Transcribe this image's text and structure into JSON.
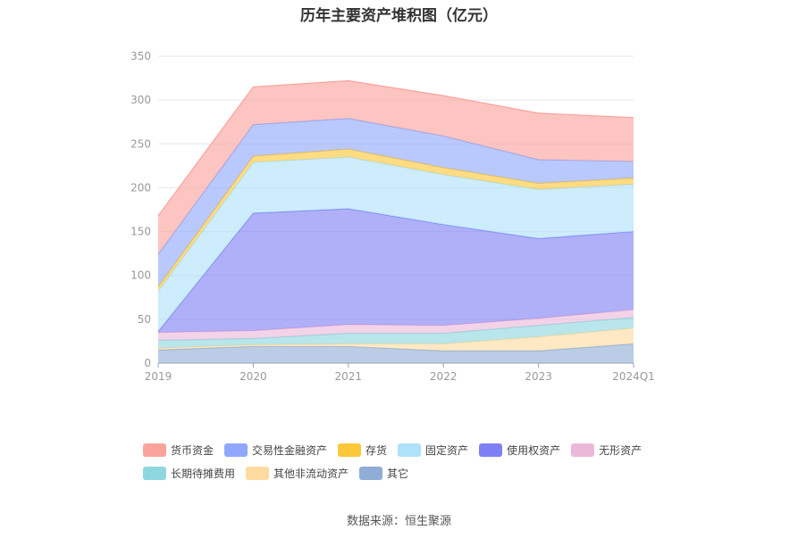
{
  "title": "历年主要资产堆积图（亿元）",
  "source": "数据来源：恒生聚源",
  "chart_data": {
    "type": "area",
    "stacked": true,
    "title": "历年主要资产堆积图（亿元）",
    "categories": [
      "2019",
      "2020",
      "2021",
      "2022",
      "2023",
      "2024Q1"
    ],
    "ylim": [
      0,
      350
    ],
    "yticks": [
      0,
      50,
      100,
      150,
      200,
      250,
      300,
      350
    ],
    "grid": true,
    "legend_position": "bottom",
    "series": [
      {
        "name": "其它",
        "color": "#8fadd7",
        "values": [
          15,
          19,
          19,
          14,
          14,
          22
        ]
      },
      {
        "name": "其他非流动资产",
        "color": "#fddba0",
        "values": [
          2,
          2,
          3,
          8,
          16,
          18
        ]
      },
      {
        "name": "长期待摊费用",
        "color": "#8ed7de",
        "values": [
          9,
          7,
          12,
          12,
          13,
          12
        ]
      },
      {
        "name": "无形资产",
        "color": "#ecb8da",
        "values": [
          9,
          9,
          10,
          9,
          8,
          9
        ]
      },
      {
        "name": "使用权资产",
        "color": "#7f80f4",
        "values": [
          1,
          134,
          132,
          115,
          91,
          89
        ]
      },
      {
        "name": "固定资产",
        "color": "#aee1fa",
        "values": [
          46,
          58,
          59,
          57,
          56,
          54
        ]
      },
      {
        "name": "存货",
        "color": "#fcc738",
        "values": [
          5,
          7,
          9,
          8,
          7,
          7
        ]
      },
      {
        "name": "交易性金融资产",
        "color": "#8fa8fc",
        "values": [
          37,
          36,
          35,
          36,
          27,
          19
        ]
      },
      {
        "name": "货币资金",
        "color": "#fba29c",
        "values": [
          44,
          43,
          43,
          46,
          53,
          50
        ]
      }
    ],
    "legend_order": [
      "货币资金",
      "交易性金融资产",
      "存货",
      "固定资产",
      "使用权资产",
      "无形资产",
      "长期待摊费用",
      "其他非流动资产",
      "其它"
    ]
  }
}
